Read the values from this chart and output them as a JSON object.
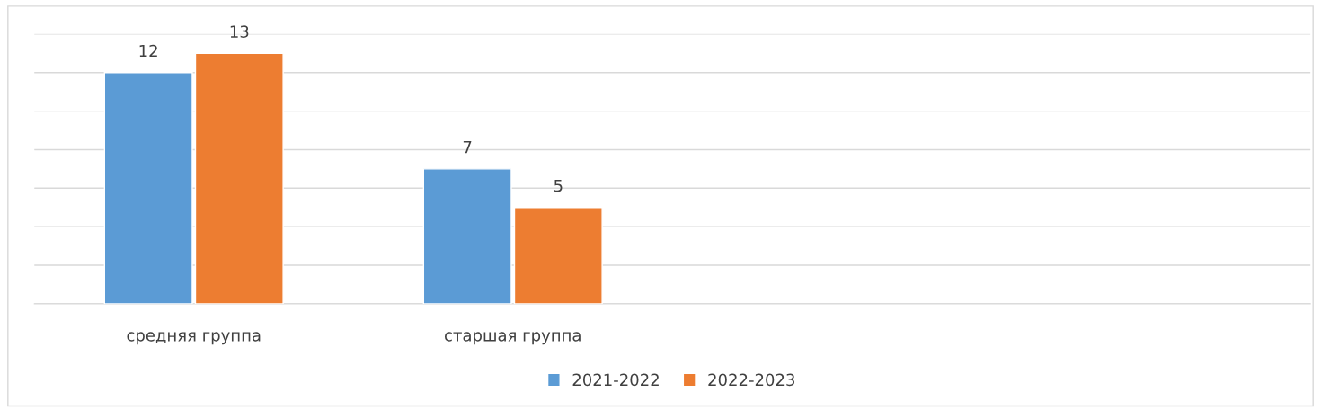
{
  "chart_data": {
    "type": "bar",
    "categories": [
      "средняя группа",
      "старшая группа",
      null,
      null
    ],
    "series": [
      {
        "name": "2021-2022",
        "color": "#5b9bd5",
        "values": [
          12,
          7,
          null,
          null
        ]
      },
      {
        "name": "2022-2023",
        "color": "#ed7d31",
        "values": [
          13,
          5,
          null,
          null
        ]
      }
    ],
    "ylim": [
      0,
      14
    ],
    "yticks": [
      {
        "value": 0,
        "label": null
      },
      {
        "value": 2,
        "label": null
      },
      {
        "value": 4,
        "label": null
      },
      {
        "value": 6,
        "label": null
      },
      {
        "value": 8,
        "label": null
      },
      {
        "value": 10,
        "label": null
      },
      {
        "value": 12,
        "label": null
      },
      {
        "value": 14,
        "label": null
      }
    ],
    "tick_labels": "x",
    "grid": "y",
    "data_labels": true,
    "legend": "bottom"
  }
}
